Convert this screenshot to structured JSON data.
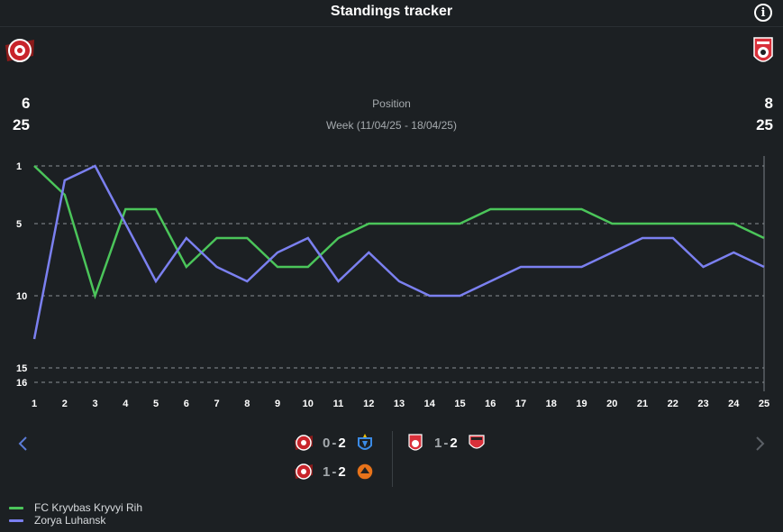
{
  "header": {
    "title": "Standings tracker",
    "info_icon": "info-icon"
  },
  "teams": {
    "home": {
      "name": "FC Kryvbas Kryvyi Rih",
      "current_position": "6",
      "total_teams": "25",
      "color": "#4bc55a"
    },
    "away": {
      "name": "Zorya Luhansk",
      "current_position": "8",
      "total_teams": "25",
      "color": "#7b80f0"
    }
  },
  "center": {
    "label": "Position",
    "week": "Week (11/04/25 - 18/04/25)"
  },
  "chart_data": {
    "type": "line",
    "x": [
      1,
      2,
      3,
      4,
      5,
      6,
      7,
      8,
      9,
      10,
      11,
      12,
      13,
      14,
      15,
      16,
      17,
      18,
      19,
      20,
      21,
      22,
      23,
      24,
      25
    ],
    "y_ticks": [
      1,
      5,
      10,
      15,
      16
    ],
    "ylim": [
      1,
      16
    ],
    "y_inverted": true,
    "grid": "horizontal dashed",
    "series": [
      {
        "name": "FC Kryvbas Kryvyi Rih",
        "color": "#4bc55a",
        "values": [
          1,
          3,
          10,
          4,
          4,
          8,
          6,
          6,
          8,
          8,
          6,
          5,
          5,
          5,
          5,
          4,
          4,
          4,
          4,
          5,
          5,
          5,
          5,
          5,
          6
        ]
      },
      {
        "name": "Zorya Luhansk",
        "color": "#7b80f0",
        "values": [
          13,
          2,
          1,
          5,
          9,
          6,
          8,
          9,
          7,
          6,
          9,
          7,
          9,
          10,
          10,
          9,
          8,
          8,
          8,
          7,
          6,
          6,
          8,
          7,
          8
        ]
      }
    ]
  },
  "navigation": {
    "prev_icon": "chevron-left-icon",
    "next_icon": "chevron-right-icon"
  },
  "matches": [
    {
      "home_icon": "kryvbas-crest-icon",
      "home_score": "0",
      "away_score": "2",
      "away_icon": "dynamo-kyiv-crest-icon"
    },
    {
      "home_icon": "kryvbas-crest-icon",
      "home_score": "1",
      "away_score": "2",
      "away_icon": "shakhtar-crest-icon"
    },
    {
      "home_icon": "zorya-crest-icon",
      "home_score": "1",
      "away_score": "2",
      "away_icon": "veres-crest-icon"
    }
  ],
  "legend": [
    {
      "label": "FC Kryvbas Kryvyi Rih",
      "color": "#4bc55a"
    },
    {
      "label": "Zorya Luhansk",
      "color": "#7b80f0"
    }
  ]
}
